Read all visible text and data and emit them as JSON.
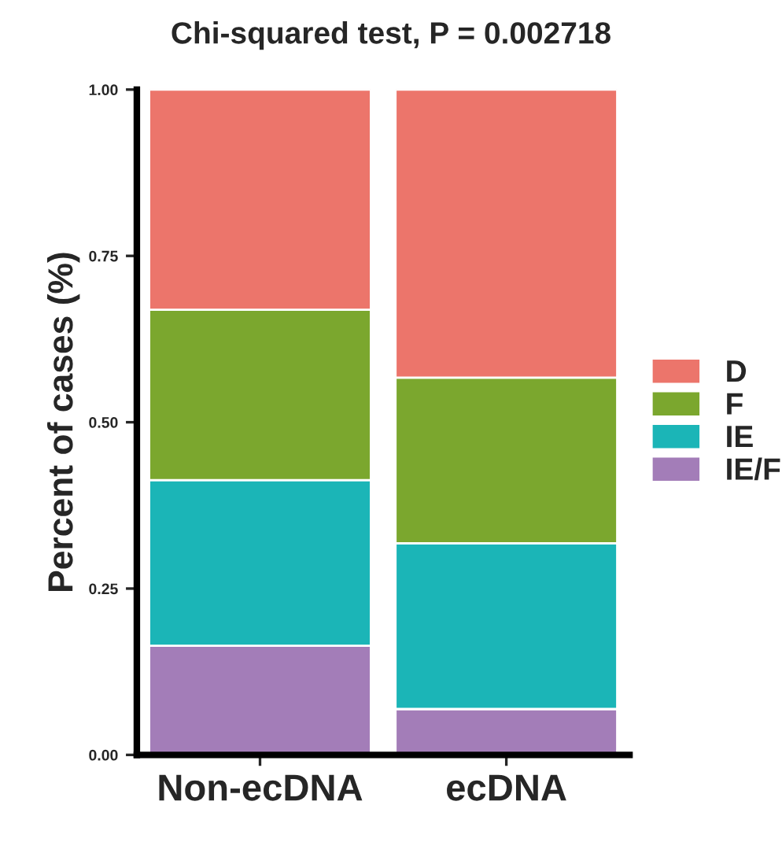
{
  "chart_data": {
    "type": "bar",
    "title": "Chi-squared test, P = 0.002718",
    "ylabel": "Percent of cases (%)",
    "categories": [
      "Non-ecDNA",
      "ecDNA"
    ],
    "stacked": true,
    "legend": "right",
    "grid": false,
    "ylim": [
      0,
      1
    ],
    "yticks": [
      {
        "value": 0,
        "label": "0.00"
      },
      {
        "value": 0.25,
        "label": "0.25"
      },
      {
        "value": 0.5,
        "label": "0.50"
      },
      {
        "value": 0.75,
        "label": "0.75"
      },
      {
        "value": 1,
        "label": "1.00"
      }
    ],
    "series": [
      {
        "name": "IE/F",
        "color": "#a37db8",
        "values": [
          0.164,
          0.069
        ]
      },
      {
        "name": "IE",
        "color": "#1bb5b7",
        "values": [
          0.249,
          0.249
        ]
      },
      {
        "name": "F",
        "color": "#7ba72e",
        "values": [
          0.256,
          0.249
        ]
      },
      {
        "name": "D",
        "color": "#ec756b",
        "values": [
          0.331,
          0.433
        ]
      }
    ]
  }
}
